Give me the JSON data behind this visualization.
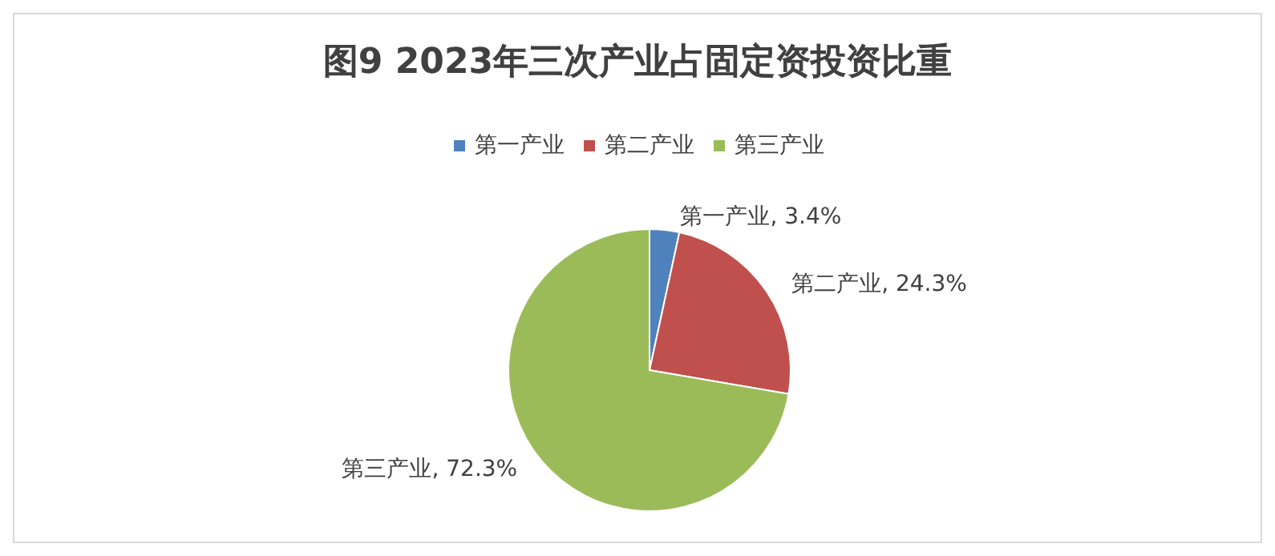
{
  "chart_data": {
    "type": "pie",
    "title": "图9 2023年三次产业占固定资投资比重",
    "categories": [
      "第一产业",
      "第二产业",
      "第三产业"
    ],
    "values": [
      3.4,
      24.3,
      72.3
    ],
    "colors": [
      "#4f81bd",
      "#c0504d",
      "#9bbb59"
    ],
    "value_labels": [
      "第一产业, 3.4%",
      "第二产业, 24.3%",
      "第三产业, 72.3%"
    ],
    "legend": "top"
  }
}
